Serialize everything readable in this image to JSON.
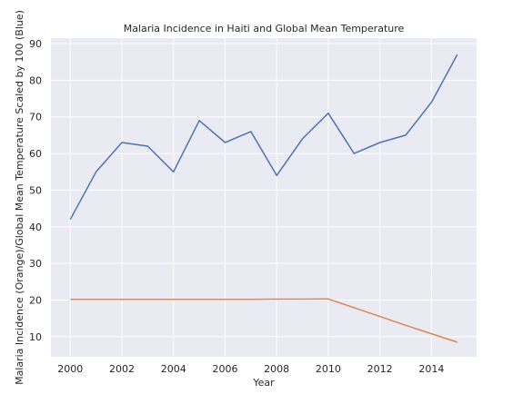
{
  "chart_data": {
    "type": "line",
    "title": "Malaria Incidence in Haiti and Global Mean Temperature",
    "xlabel": "Year",
    "ylabel": "Malaria Incidence (Orange)/Global Mean Temperature Scaled by 100 (Blue)",
    "xlim": [
      1999.25,
      2015.75
    ],
    "ylim": [
      4.5,
      91.5
    ],
    "x_ticks": [
      2000,
      2002,
      2004,
      2006,
      2008,
      2010,
      2012,
      2014
    ],
    "y_ticks": [
      10,
      20,
      30,
      40,
      50,
      60,
      70,
      80,
      90
    ],
    "grid": true,
    "x": [
      2000,
      2001,
      2002,
      2003,
      2004,
      2005,
      2006,
      2007,
      2008,
      2009,
      2010,
      2011,
      2012,
      2013,
      2014,
      2015
    ],
    "series": [
      {
        "color": "#4c72b0",
        "values": [
          42,
          55,
          63,
          62,
          55,
          69,
          63,
          66,
          54,
          64,
          71,
          60,
          63,
          65,
          74,
          87
        ]
      },
      {
        "color": "#dd8452",
        "values": [
          20.2,
          20.2,
          20.2,
          20.2,
          20.2,
          20.2,
          20.2,
          20.2,
          20.25,
          20.25,
          20.3,
          17.9,
          15.5,
          13.1,
          10.8,
          8.5
        ]
      }
    ],
    "colors": {
      "plot_background": "#eaeaf2",
      "grid": "#ffffff"
    }
  }
}
